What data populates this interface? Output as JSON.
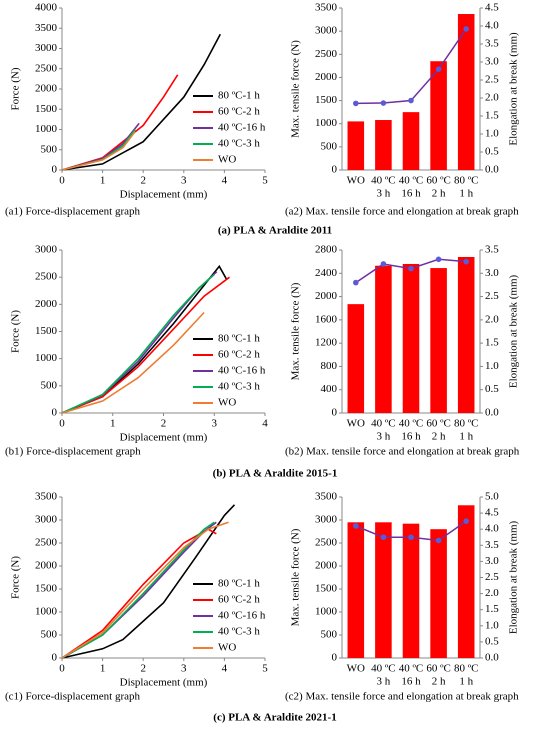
{
  "chart_data": [
    {
      "type": "line",
      "caption": "(a1) Force-displacement graph",
      "xlabel": "Displacement (mm)",
      "ylabel": "Force (N)",
      "xlim": [
        0,
        5
      ],
      "xticks": [
        0,
        1,
        2,
        3,
        4,
        5
      ],
      "ylim": [
        0,
        4000
      ],
      "yticks": [
        0,
        500,
        1000,
        1500,
        2000,
        2500,
        3000,
        3500,
        4000
      ],
      "legend": "lower right",
      "series": [
        {
          "name": "80 ºC-1 h",
          "color": "#000000",
          "x": [
            0,
            1,
            2,
            3,
            3.5,
            3.9
          ],
          "values": [
            0,
            150,
            700,
            1800,
            2600,
            3350
          ]
        },
        {
          "name": "60 ºC-2 h",
          "color": "#ff0000",
          "x": [
            0,
            1,
            2,
            2.5,
            2.85
          ],
          "values": [
            0,
            300,
            1100,
            1800,
            2350
          ]
        },
        {
          "name": "40 ºC-16 h",
          "color": "#7030a0",
          "x": [
            0,
            1,
            1.5,
            1.9
          ],
          "values": [
            0,
            280,
            650,
            1150
          ]
        },
        {
          "name": "40 ºC-3 h",
          "color": "#00b050",
          "x": [
            0,
            1,
            1.5,
            1.8
          ],
          "values": [
            0,
            260,
            600,
            1000
          ]
        },
        {
          "name": "WO",
          "color": "#ed7d31",
          "x": [
            0,
            1,
            1.5,
            1.8
          ],
          "values": [
            0,
            250,
            550,
            950
          ]
        }
      ]
    },
    {
      "type": "bar",
      "caption": "(a2) Max. tensile force and elongation at break graph",
      "ylabel": "Max. tensile force (N)",
      "y2label": "Elongation at break (mm)",
      "categories": [
        [
          "WO"
        ],
        [
          "40 ºC",
          "3 h"
        ],
        [
          "40 ºC",
          "16 h"
        ],
        [
          "60 ºC",
          "2 h"
        ],
        [
          "80 ºC",
          "1 h"
        ]
      ],
      "ylim": [
        0,
        3500
      ],
      "yticks": [
        0,
        500,
        1000,
        1500,
        2000,
        2500,
        3000,
        3500
      ],
      "y2lim": [
        0,
        4.5
      ],
      "y2ticks": [
        {
          "value": 0,
          "label": "0.0"
        },
        0.5,
        {
          "value": 1,
          "label": "1.0"
        },
        1.5,
        {
          "value": 2,
          "label": "2.0"
        },
        2.5,
        {
          "value": 3,
          "label": "3.0"
        },
        3.5,
        {
          "value": 4,
          "label": "4.0"
        },
        4.5
      ],
      "series": [
        {
          "type": "bar",
          "color": "#ff0000",
          "values": [
            1050,
            1080,
            1250,
            2350,
            3370
          ]
        },
        {
          "type": "line",
          "axis": "y2",
          "color": "#7030a0",
          "values": [
            1.85,
            1.86,
            1.93,
            2.8,
            3.92
          ]
        }
      ]
    },
    {
      "type": "line",
      "caption": "(b1) Force-displacement graph",
      "xlabel": "Displacement (mm)",
      "ylabel": "Force (N)",
      "xlim": [
        0,
        4
      ],
      "xticks": [
        0,
        1,
        2,
        3,
        4
      ],
      "ylim": [
        0,
        3000
      ],
      "yticks": [
        0,
        500,
        1000,
        1500,
        2000,
        2500,
        3000
      ],
      "legend": "lower right",
      "series": [
        {
          "name": "80 ºC-1 h",
          "color": "#000000",
          "x": [
            0,
            0.8,
            1.5,
            2.2,
            2.8,
            3.1,
            3.25
          ],
          "values": [
            0,
            300,
            900,
            1650,
            2350,
            2700,
            2450
          ]
        },
        {
          "name": "60 ºC-2 h",
          "color": "#ff0000",
          "x": [
            0,
            0.8,
            1.5,
            2.2,
            2.8,
            3.3
          ],
          "values": [
            0,
            300,
            850,
            1550,
            2150,
            2500
          ]
        },
        {
          "name": "40 ºC-16 h",
          "color": "#7030a0",
          "x": [
            0,
            0.8,
            1.5,
            2.2,
            2.7,
            3.05
          ],
          "values": [
            0,
            330,
            950,
            1750,
            2300,
            2600
          ]
        },
        {
          "name": "40 ºC-3 h",
          "color": "#00b050",
          "x": [
            0,
            0.8,
            1.5,
            2.2,
            2.7,
            3.0
          ],
          "values": [
            0,
            340,
            1000,
            1800,
            2300,
            2550
          ]
        },
        {
          "name": "WO",
          "color": "#ed7d31",
          "x": [
            0,
            0.8,
            1.5,
            2.2,
            2.8
          ],
          "values": [
            0,
            220,
            650,
            1250,
            1850
          ]
        }
      ]
    },
    {
      "type": "bar",
      "caption": "(b2) Max. tensile force and elongation at break graph",
      "ylabel": "Max. tensile force (N)",
      "y2label": "Elongation at break (mm)",
      "categories": [
        [
          "WO"
        ],
        [
          "40 ºC",
          "3 h"
        ],
        [
          "40 ºC",
          "16 h"
        ],
        [
          "60 ºC",
          "2 h"
        ],
        [
          "80 ºC",
          "1 h"
        ]
      ],
      "ylim": [
        0,
        2800
      ],
      "yticks": [
        0,
        400,
        800,
        1200,
        1600,
        2000,
        2400,
        2800
      ],
      "y2lim": [
        0,
        3.5
      ],
      "y2ticks": [
        {
          "value": 0,
          "label": "0.0"
        },
        0.5,
        {
          "value": 1,
          "label": "1.0"
        },
        1.5,
        {
          "value": 2,
          "label": "2.0"
        },
        2.5,
        {
          "value": 3,
          "label": "3.0"
        },
        3.5
      ],
      "series": [
        {
          "type": "bar",
          "color": "#ff0000",
          "values": [
            1870,
            2530,
            2560,
            2490,
            2680
          ]
        },
        {
          "type": "line",
          "axis": "y2",
          "color": "#7030a0",
          "values": [
            2.8,
            3.2,
            3.1,
            3.3,
            3.25
          ]
        }
      ]
    },
    {
      "type": "line",
      "caption": "(c1) Force-displacement graph",
      "xlabel": "Displacement (mm)",
      "ylabel": "Force (N)",
      "xlim": [
        0,
        5
      ],
      "xticks": [
        0,
        1,
        2,
        3,
        4,
        5
      ],
      "ylim": [
        0,
        3500
      ],
      "yticks": [
        0,
        500,
        1000,
        1500,
        2000,
        2500,
        3000,
        3500
      ],
      "legend": "lower right",
      "series": [
        {
          "name": "80 ºC-1 h",
          "color": "#000000",
          "x": [
            0,
            1,
            1.5,
            2.5,
            3.3,
            4.0,
            4.25
          ],
          "values": [
            0,
            200,
            400,
            1200,
            2200,
            3100,
            3330
          ]
        },
        {
          "name": "60 ºC-2 h",
          "color": "#ff0000",
          "x": [
            0,
            1,
            2,
            3,
            3.6,
            3.8
          ],
          "values": [
            0,
            600,
            1600,
            2500,
            2800,
            2700
          ]
        },
        {
          "name": "40 ºC-16 h",
          "color": "#7030a0",
          "x": [
            0,
            1,
            2,
            3,
            3.5,
            3.8
          ],
          "values": [
            0,
            500,
            1350,
            2300,
            2750,
            2950
          ]
        },
        {
          "name": "40 ºC-3 h",
          "color": "#00b050",
          "x": [
            0,
            1,
            2,
            3,
            3.5,
            3.75
          ],
          "values": [
            0,
            500,
            1400,
            2350,
            2800,
            2950
          ]
        },
        {
          "name": "WO",
          "color": "#ed7d31",
          "x": [
            0,
            1,
            2,
            3,
            3.6,
            4.1
          ],
          "values": [
            0,
            550,
            1500,
            2400,
            2800,
            2950
          ]
        }
      ]
    },
    {
      "type": "bar",
      "caption": "(c2) Max. tensile force and elongation at break graph",
      "ylabel": "Max. tensile force (N)",
      "y2label": "Elongation at break (mm)",
      "categories": [
        [
          "WO"
        ],
        [
          "40 ºC",
          "3 h"
        ],
        [
          "40 ºC",
          "16 h"
        ],
        [
          "60 ºC",
          "2 h"
        ],
        [
          "80 ºC",
          "1 h"
        ]
      ],
      "ylim": [
        0,
        3500
      ],
      "yticks": [
        0,
        500,
        1000,
        1500,
        2000,
        2500,
        3000,
        3500
      ],
      "y2lim": [
        0,
        5
      ],
      "y2ticks": [
        {
          "value": 0,
          "label": "0.0"
        },
        0.5,
        {
          "value": 1,
          "label": "1.0"
        },
        1.5,
        {
          "value": 2,
          "label": "2.0"
        },
        2.5,
        {
          "value": 3,
          "label": "3.0"
        },
        3.5,
        {
          "value": 4,
          "label": "4.0"
        },
        4.5,
        {
          "value": 5,
          "label": "5.0"
        }
      ],
      "series": [
        {
          "type": "bar",
          "color": "#ff0000",
          "values": [
            2950,
            2950,
            2920,
            2800,
            3320
          ]
        },
        {
          "type": "line",
          "axis": "y2",
          "color": "#7030a0",
          "values": [
            4.1,
            3.75,
            3.75,
            3.65,
            4.25
          ]
        }
      ]
    }
  ],
  "figure_captions": [
    "(a) PLA & Araldite 2011",
    "(b) PLA & Araldite 2015-1",
    "(c) PLA & Araldite 2021-1"
  ]
}
